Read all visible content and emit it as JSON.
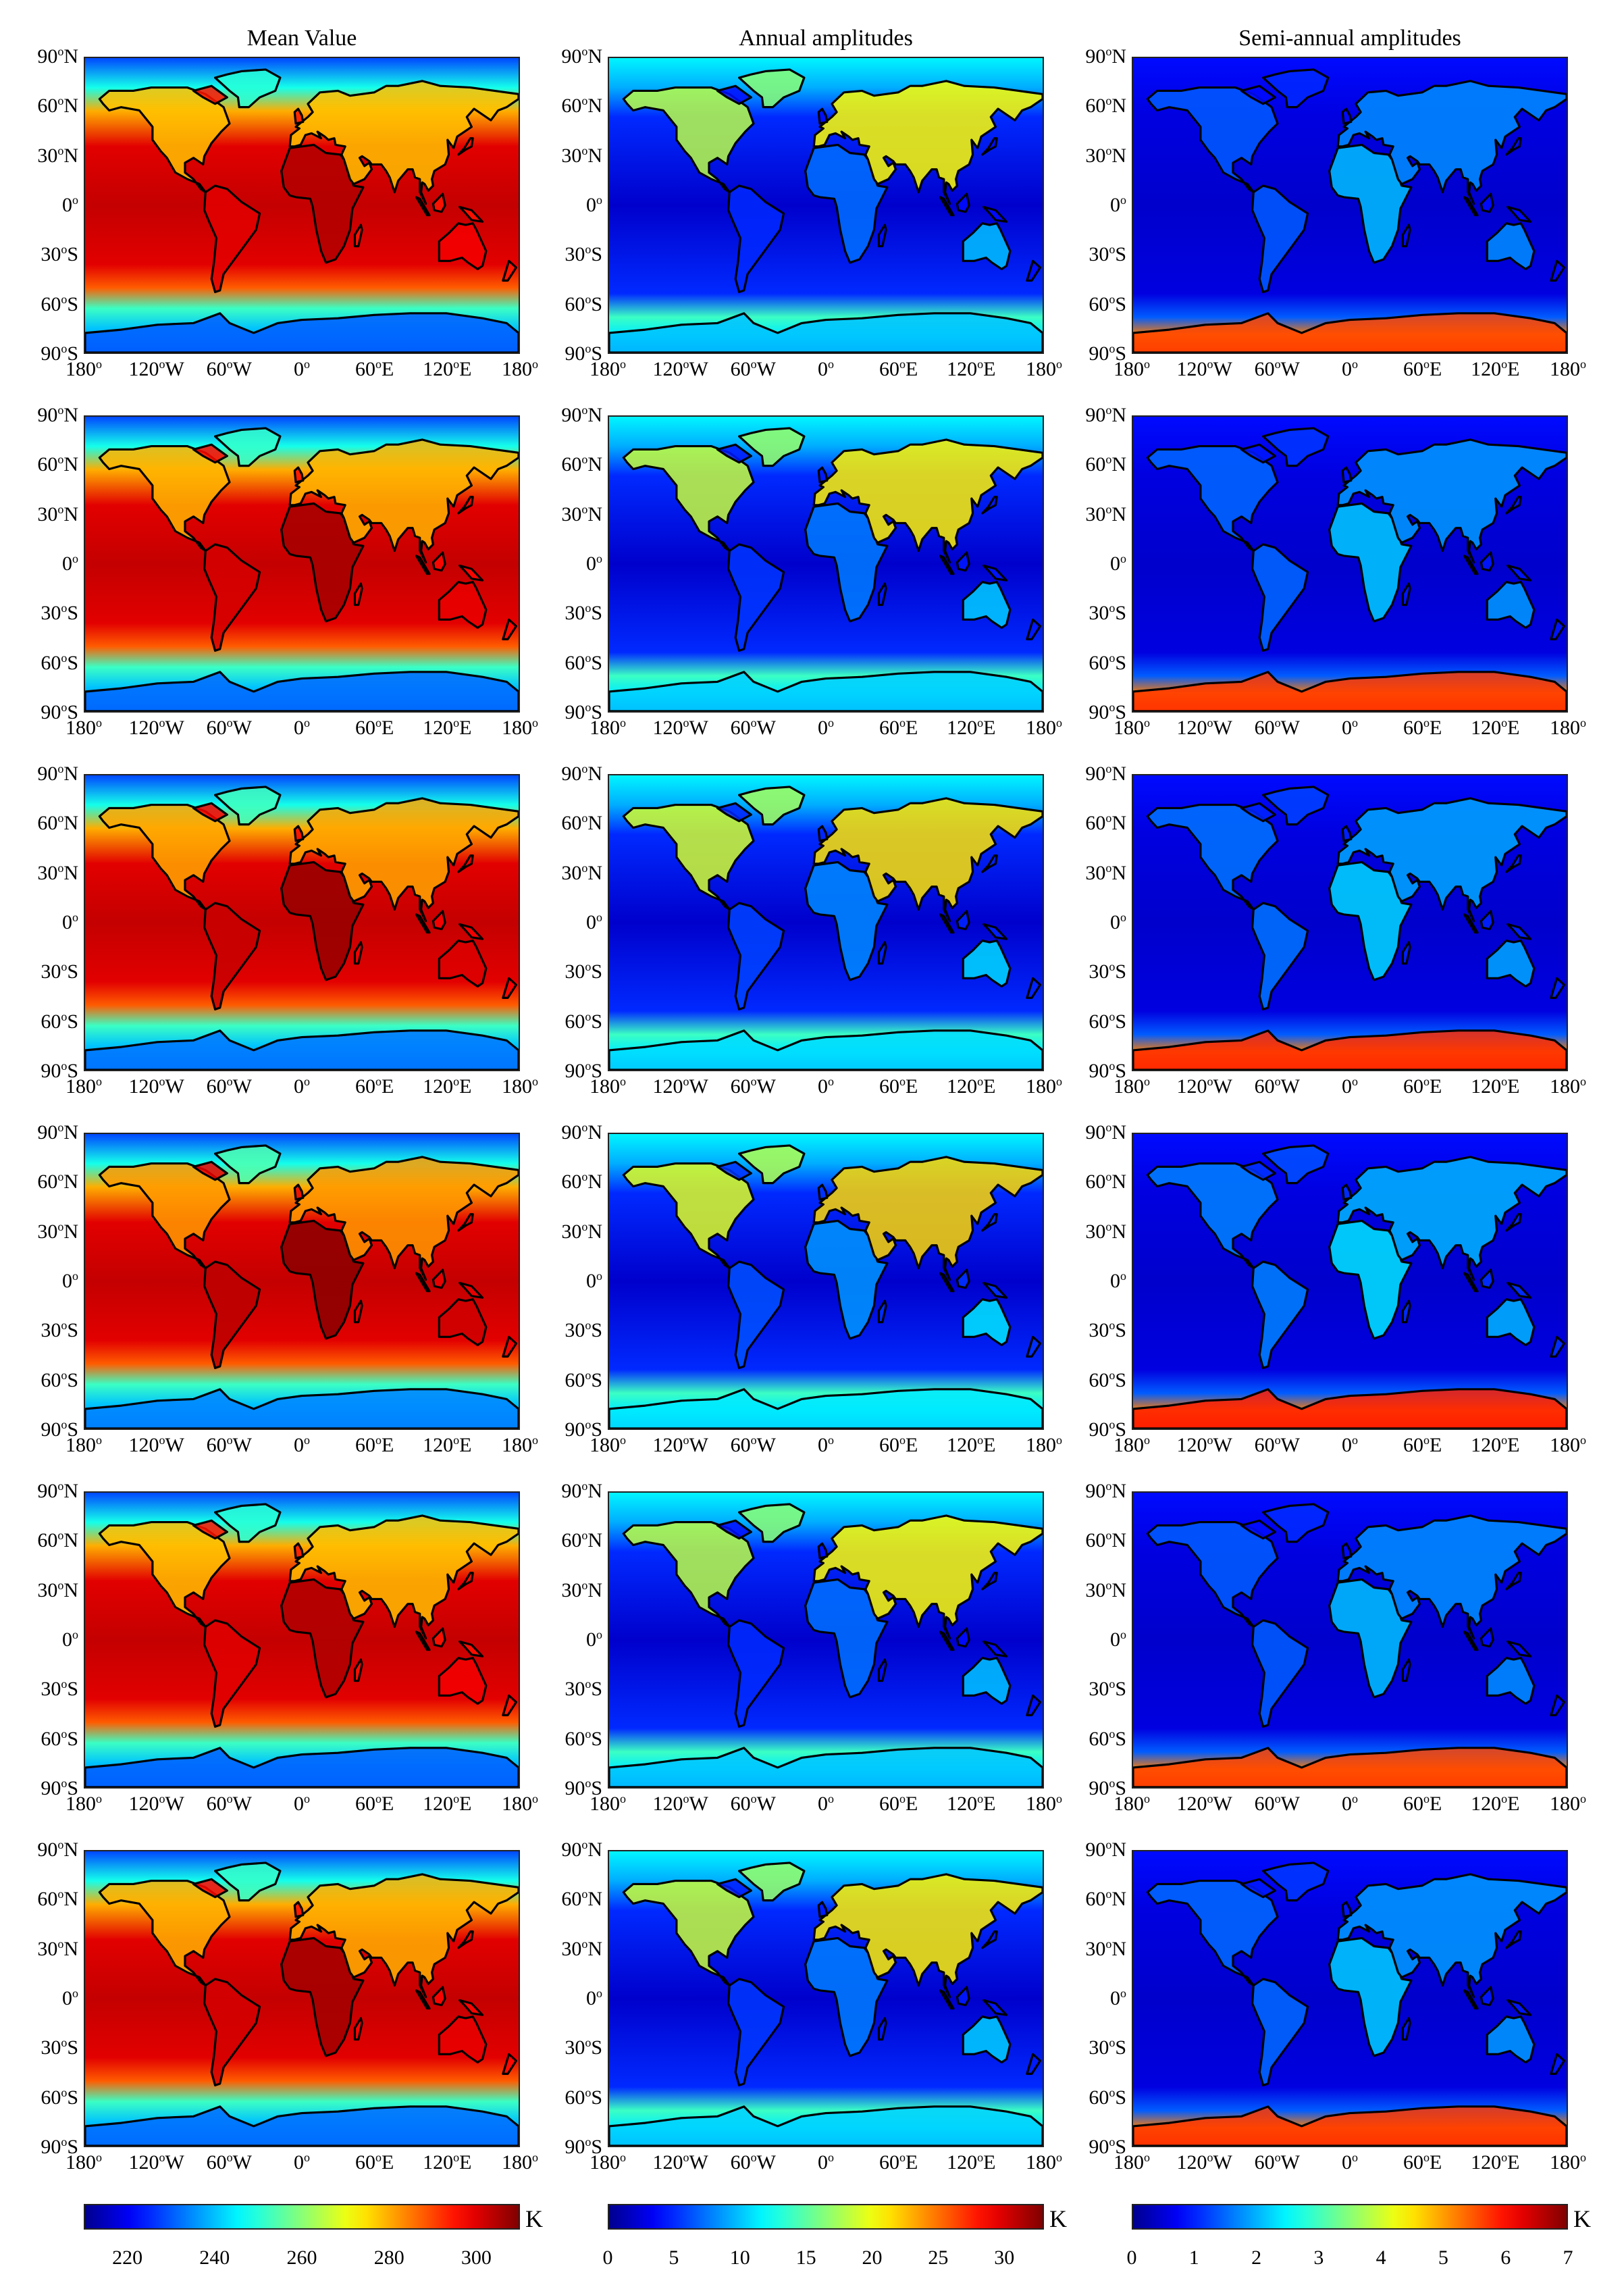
{
  "columns": [
    {
      "title": "Mean Value",
      "scheme": "mean"
    },
    {
      "title": "Annual amplitudes",
      "scheme": "amp"
    },
    {
      "title": "Semi-annual amplitudes",
      "scheme": "semi"
    }
  ],
  "row_count": 6,
  "lat_ticks": [
    {
      "deg": "90",
      "hemi": "N",
      "lat": 90
    },
    {
      "deg": "60",
      "hemi": "N",
      "lat": 60
    },
    {
      "deg": "30",
      "hemi": "N",
      "lat": 30
    },
    {
      "deg": "0",
      "hemi": "",
      "lat": 0
    },
    {
      "deg": "30",
      "hemi": "S",
      "lat": -30
    },
    {
      "deg": "60",
      "hemi": "S",
      "lat": -60
    },
    {
      "deg": "90",
      "hemi": "S",
      "lat": -90
    }
  ],
  "lon_ticks": [
    {
      "deg": "180",
      "hemi": "",
      "lon": -180
    },
    {
      "deg": "120",
      "hemi": "W",
      "lon": -120
    },
    {
      "deg": "60",
      "hemi": "W",
      "lon": -60
    },
    {
      "deg": "0",
      "hemi": "",
      "lon": 0
    },
    {
      "deg": "60",
      "hemi": "E",
      "lon": 60
    },
    {
      "deg": "120",
      "hemi": "E",
      "lon": 120
    },
    {
      "deg": "180",
      "hemi": "",
      "lon": 180
    }
  ],
  "colorbars": [
    {
      "ticks": [
        "220",
        "240",
        "260",
        "280",
        "300"
      ],
      "tick_values": [
        220,
        240,
        260,
        280,
        300
      ],
      "range": [
        210,
        310
      ],
      "unit": "K"
    },
    {
      "ticks": [
        "0",
        "5",
        "10",
        "15",
        "20",
        "25",
        "30"
      ],
      "tick_values": [
        0,
        5,
        10,
        15,
        20,
        25,
        30
      ],
      "range": [
        0,
        33
      ],
      "unit": "K"
    },
    {
      "ticks": [
        "0",
        "1",
        "2",
        "3",
        "4",
        "5",
        "6",
        "7"
      ],
      "tick_values": [
        0,
        1,
        2,
        3,
        4,
        5,
        6,
        7
      ],
      "range": [
        0,
        7
      ],
      "unit": "K"
    }
  ],
  "colormap": "jet",
  "coastline_color": "#000000"
}
